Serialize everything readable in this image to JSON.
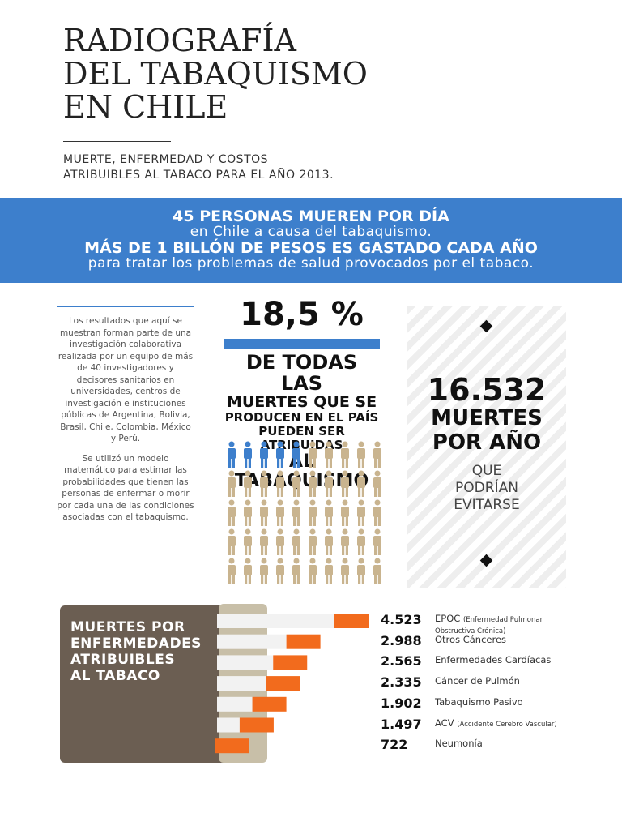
{
  "header": {
    "title": [
      "RADIOGRAFÍA",
      "DEL TABAQUISMO",
      "EN CHILE"
    ],
    "subtitle": [
      "MUERTE, ENFERMEDAD Y COSTOS",
      "ATRIBUIBLES AL TABACO PARA EL AÑO 2013."
    ]
  },
  "banner": [
    "45 PERSONAS MUEREN POR DÍA",
    "en Chile a causa del tabaquismo.",
    "MÁS DE 1 BILLÓN DE PESOS ES GASTADO CADA AÑO",
    "para tratar los problemas de salud provocados por el tabaco."
  ],
  "methodology": [
    "Los resultados que aquí se muestran forman parte de una investigación colaborativa realizada por un equipo de más de 40 investigadores y decisores sanitarios en universidades, centros de investigación e instituciones públicas de Argentina, Bolivia, Brasil, Chile, Colombia, México y Perú.",
    "Se utilizó un modelo matemático para estimar las probabilidades que tienen las personas de enfermar o morir por cada una de las condiciones asociadas con el tabaquismo."
  ],
  "stat": {
    "percentage": "18,5 %",
    "lines": [
      "DE TODAS LAS",
      "MUERTES QUE SE",
      "PRODUCEN EN EL PAÍS",
      "PUEDEN SER ATRIBUIDAS",
      "AL TABAQUISMO"
    ]
  },
  "deaths": {
    "number": "16.532",
    "label": [
      "MUERTES",
      "POR AÑO"
    ],
    "note": [
      "QUE",
      "PODRÍAN",
      "EVITARSE"
    ]
  },
  "causes": {
    "title": [
      "MUERTES POR",
      "ENFERMEDADES",
      "ATRIBUIBLES",
      "AL TABACO"
    ],
    "items": [
      {
        "value": 4523,
        "value_label": "4.523",
        "name": "EPOC",
        "detail": "(Enfermedad Pulmonar Obstructiva Crónica)"
      },
      {
        "value": 2988,
        "value_label": "2.988",
        "name": "Otros Cánceres"
      },
      {
        "value": 2565,
        "value_label": "2.565",
        "name": "Enfermedades Cardíacas"
      },
      {
        "value": 2335,
        "value_label": "2.335",
        "name": "Cáncer de Pulmón"
      },
      {
        "value": 1902,
        "value_label": "1.902",
        "name": "Tabaquismo Pasivo"
      },
      {
        "value": 1497,
        "value_label": "1.497",
        "name": "ACV",
        "detail": "(Accidente Cerebro Vascular)"
      },
      {
        "value": 722,
        "value_label": "722",
        "name": "Neumonía"
      }
    ]
  }
}
